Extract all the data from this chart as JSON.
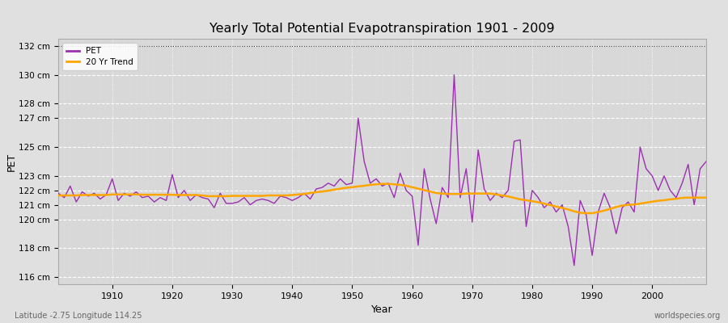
{
  "title": "Yearly Total Potential Evapotranspiration 1901 - 2009",
  "xlabel": "Year",
  "ylabel": "PET",
  "subtitle_left": "Latitude -2.75 Longitude 114.25",
  "subtitle_right": "worldspecies.org",
  "pet_color": "#9B30B0",
  "trend_color": "#FFA500",
  "fig_bg_color": "#E0E0E0",
  "plot_bg_color": "#D8D8D8",
  "ylim_min": 115.5,
  "ylim_max": 132.5,
  "xlim_min": 1901,
  "xlim_max": 2009,
  "ytick_positions": [
    116,
    118,
    120,
    121,
    122,
    123,
    125,
    127,
    128,
    130,
    132
  ],
  "ytick_labels": [
    "116 cm",
    "118 cm",
    "120 cm",
    "121 cm",
    "122 cm",
    "123 cm",
    "125 cm",
    "127 cm",
    "128 cm",
    "130 cm",
    "132 cm"
  ],
  "xtick_positions": [
    1910,
    1920,
    1930,
    1940,
    1950,
    1960,
    1970,
    1980,
    1990,
    2000
  ],
  "years": [
    1901,
    1902,
    1903,
    1904,
    1905,
    1906,
    1907,
    1908,
    1909,
    1910,
    1911,
    1912,
    1913,
    1914,
    1915,
    1916,
    1917,
    1918,
    1919,
    1920,
    1921,
    1922,
    1923,
    1924,
    1925,
    1926,
    1927,
    1928,
    1929,
    1930,
    1931,
    1932,
    1933,
    1934,
    1935,
    1936,
    1937,
    1938,
    1939,
    1940,
    1941,
    1942,
    1943,
    1944,
    1945,
    1946,
    1947,
    1948,
    1949,
    1950,
    1951,
    1952,
    1953,
    1954,
    1955,
    1956,
    1957,
    1958,
    1959,
    1960,
    1961,
    1962,
    1963,
    1964,
    1965,
    1966,
    1967,
    1968,
    1969,
    1970,
    1971,
    1972,
    1973,
    1974,
    1975,
    1976,
    1977,
    1978,
    1979,
    1980,
    1981,
    1982,
    1983,
    1984,
    1985,
    1986,
    1987,
    1988,
    1989,
    1990,
    1991,
    1992,
    1993,
    1994,
    1995,
    1996,
    1997,
    1998,
    1999,
    2000,
    2001,
    2002,
    2003,
    2004,
    2005,
    2006,
    2007,
    2008,
    2009
  ],
  "pet": [
    121.8,
    121.5,
    122.3,
    121.2,
    121.9,
    121.6,
    121.8,
    121.4,
    121.7,
    122.8,
    121.3,
    121.8,
    121.6,
    121.9,
    121.5,
    121.6,
    121.2,
    121.5,
    121.3,
    123.1,
    121.5,
    122.0,
    121.3,
    121.7,
    121.5,
    121.4,
    120.8,
    121.8,
    121.1,
    121.1,
    121.2,
    121.5,
    121.0,
    121.3,
    121.4,
    121.3,
    121.1,
    121.6,
    121.5,
    121.3,
    121.5,
    121.8,
    121.4,
    122.1,
    122.2,
    122.5,
    122.3,
    122.8,
    122.4,
    122.5,
    127.0,
    124.0,
    122.5,
    122.8,
    122.3,
    122.5,
    121.5,
    123.2,
    122.0,
    121.6,
    118.2,
    123.5,
    121.4,
    119.7,
    122.2,
    121.5,
    130.0,
    121.5,
    123.5,
    119.8,
    124.8,
    122.1,
    121.3,
    121.8,
    121.5,
    122.0,
    125.4,
    125.5,
    119.5,
    122.0,
    121.5,
    120.8,
    121.2,
    120.5,
    121.0,
    119.5,
    116.8,
    121.3,
    120.3,
    117.5,
    120.5,
    121.8,
    120.8,
    119.0,
    120.8,
    121.2,
    120.5,
    125.0,
    123.5,
    123.0,
    122.0,
    123.0,
    122.0,
    121.5,
    122.5,
    123.8,
    121.0,
    123.5,
    124.0
  ],
  "trend": [
    121.65,
    121.65,
    121.65,
    121.65,
    121.68,
    121.68,
    121.68,
    121.68,
    121.68,
    121.72,
    121.72,
    121.72,
    121.72,
    121.72,
    121.7,
    121.7,
    121.7,
    121.7,
    121.7,
    121.7,
    121.68,
    121.68,
    121.68,
    121.68,
    121.65,
    121.6,
    121.6,
    121.6,
    121.6,
    121.62,
    121.62,
    121.62,
    121.62,
    121.62,
    121.62,
    121.65,
    121.65,
    121.65,
    121.65,
    121.68,
    121.72,
    121.75,
    121.82,
    121.88,
    121.92,
    121.98,
    122.05,
    122.12,
    122.18,
    122.22,
    122.28,
    122.32,
    122.38,
    122.42,
    122.45,
    122.45,
    122.42,
    122.38,
    122.32,
    122.22,
    122.12,
    122.02,
    121.92,
    121.82,
    121.78,
    121.75,
    121.75,
    121.75,
    121.78,
    121.78,
    121.78,
    121.78,
    121.78,
    121.72,
    121.65,
    121.58,
    121.48,
    121.38,
    121.32,
    121.25,
    121.18,
    121.08,
    120.98,
    120.88,
    120.78,
    120.68,
    120.55,
    120.45,
    120.42,
    120.42,
    120.5,
    120.6,
    120.72,
    120.85,
    120.95,
    121.0,
    121.02,
    121.08,
    121.15,
    121.22,
    121.28,
    121.32,
    121.38,
    121.42,
    121.48,
    121.5,
    121.5,
    121.5,
    121.5
  ]
}
